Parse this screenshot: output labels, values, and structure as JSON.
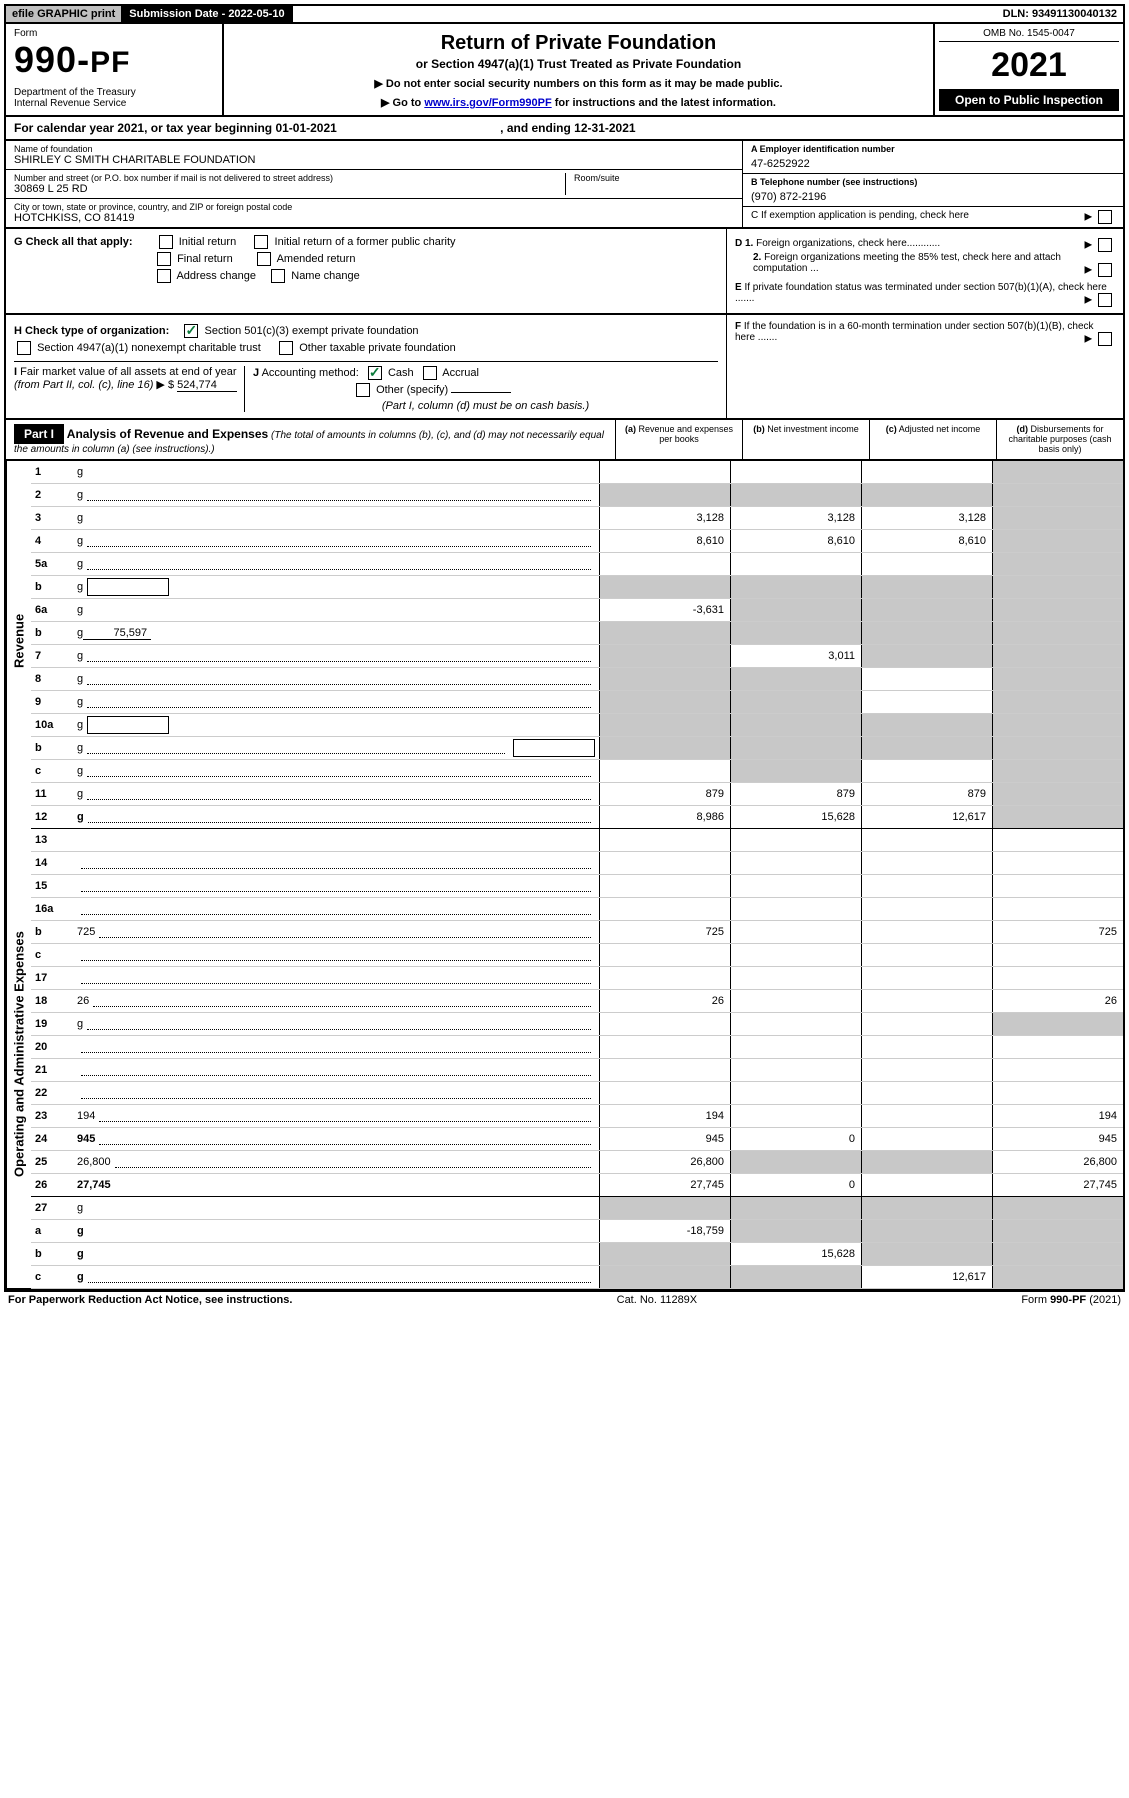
{
  "top": {
    "efile": "efile GRAPHIC print",
    "submission_label": "Submission Date - 2022-05-10",
    "dln": "DLN: 93491130040132"
  },
  "header": {
    "form_label": "Form",
    "form_number": "990-PF",
    "dept": "Department of the Treasury\nInternal Revenue Service",
    "title": "Return of Private Foundation",
    "subtitle": "or Section 4947(a)(1) Trust Treated as Private Foundation",
    "note1": "▶ Do not enter social security numbers on this form as it may be made public.",
    "note2": "▶ Go to ",
    "link": "www.irs.gov/Form990PF",
    "note2b": " for instructions and the latest information.",
    "omb": "OMB No. 1545-0047",
    "year": "2021",
    "inspection": "Open to Public Inspection"
  },
  "calyear": {
    "text": "For calendar year 2021, or tax year beginning 01-01-2021",
    "ending": ", and ending 12-31-2021"
  },
  "info": {
    "name_label": "Name of foundation",
    "name": "SHIRLEY C SMITH CHARITABLE FOUNDATION",
    "addr_label": "Number and street (or P.O. box number if mail is not delivered to street address)",
    "addr": "30869 L 25 RD",
    "room_label": "Room/suite",
    "city_label": "City or town, state or province, country, and ZIP or foreign postal code",
    "city": "HOTCHKISS, CO  81419",
    "a_label": "A Employer identification number",
    "a_val": "47-6252922",
    "b_label": "B Telephone number (see instructions)",
    "b_val": "(970) 872-2196",
    "c_label": "C If exemption application is pending, check here"
  },
  "checks": {
    "g_label": "G Check all that apply:",
    "g_items": [
      "Initial return",
      "Initial return of a former public charity",
      "Final return",
      "Amended return",
      "Address change",
      "Name change"
    ],
    "d1": "D 1. Foreign organizations, check here............",
    "d2": "2. Foreign organizations meeting the 85% test, check here and attach computation ...",
    "e": "E If private foundation status was terminated under section 507(b)(1)(A), check here .......",
    "h_label": "H Check type of organization:",
    "h1": "Section 501(c)(3) exempt private foundation",
    "h2": "Section 4947(a)(1) nonexempt charitable trust",
    "h3": "Other taxable private foundation",
    "i_label": "I Fair market value of all assets at end of year (from Part II, col. (c), line 16) ▶ $",
    "i_val": "524,774",
    "j_label": "J Accounting method:",
    "j_cash": "Cash",
    "j_accrual": "Accrual",
    "j_other": "Other (specify)",
    "j_note": "(Part I, column (d) must be on cash basis.)",
    "f": "F If the foundation is in a 60-month termination under section 507(b)(1)(B), check here ......."
  },
  "part1": {
    "label": "Part I",
    "title": "Analysis of Revenue and Expenses",
    "title_note": "(The total of amounts in columns (b), (c), and (d) may not necessarily equal the amounts in column (a) (see instructions).)",
    "col_a": "(a) Revenue and expenses per books",
    "col_b": "(b) Net investment income",
    "col_c": "(c) Adjusted net income",
    "col_d": "(d) Disbursements for charitable purposes (cash basis only)"
  },
  "side_labels": {
    "revenue": "Revenue",
    "expenses": "Operating and Administrative Expenses"
  },
  "rows": [
    {
      "n": "1",
      "d": "g",
      "a": "",
      "b": "",
      "c": ""
    },
    {
      "n": "2",
      "d": "g",
      "dots": true,
      "a": "g",
      "b": "g",
      "c": "g",
      "bold_not": true
    },
    {
      "n": "3",
      "d": "g",
      "a": "3,128",
      "b": "3,128",
      "c": "3,128"
    },
    {
      "n": "4",
      "d": "g",
      "dots": true,
      "a": "8,610",
      "b": "8,610",
      "c": "8,610"
    },
    {
      "n": "5a",
      "d": "g",
      "dots": true,
      "a": "",
      "b": "",
      "c": ""
    },
    {
      "n": "b",
      "d": "g",
      "box": true,
      "a": "g",
      "b": "g",
      "c": "g"
    },
    {
      "n": "6a",
      "d": "g",
      "a": "-3,631",
      "b": "g",
      "c": "g"
    },
    {
      "n": "b",
      "d": "g",
      "uval": "75,597",
      "a": "g",
      "b": "g",
      "c": "g"
    },
    {
      "n": "7",
      "d": "g",
      "dots": true,
      "a": "g",
      "b": "3,011",
      "c": "g"
    },
    {
      "n": "8",
      "d": "g",
      "dots": true,
      "a": "g",
      "b": "g",
      "c": ""
    },
    {
      "n": "9",
      "d": "g",
      "dots": true,
      "a": "g",
      "b": "g",
      "c": ""
    },
    {
      "n": "10a",
      "d": "g",
      "box": true,
      "a": "g",
      "b": "g",
      "c": "g"
    },
    {
      "n": "b",
      "d": "g",
      "dots": true,
      "box": true,
      "a": "g",
      "b": "g",
      "c": "g"
    },
    {
      "n": "c",
      "d": "g",
      "dots": true,
      "a": "",
      "b": "g",
      "c": ""
    },
    {
      "n": "11",
      "d": "g",
      "dots": true,
      "a": "879",
      "b": "879",
      "c": "879"
    },
    {
      "n": "12",
      "d": "g",
      "dots": true,
      "bold": true,
      "hr": true,
      "a": "8,986",
      "b": "15,628",
      "c": "12,617"
    },
    {
      "n": "13",
      "d": "",
      "a": "",
      "b": "",
      "c": ""
    },
    {
      "n": "14",
      "d": "",
      "dots": true,
      "a": "",
      "b": "",
      "c": ""
    },
    {
      "n": "15",
      "d": "",
      "dots": true,
      "a": "",
      "b": "",
      "c": ""
    },
    {
      "n": "16a",
      "d": "",
      "dots": true,
      "a": "",
      "b": "",
      "c": ""
    },
    {
      "n": "b",
      "d": "725",
      "dots": true,
      "a": "725",
      "b": "",
      "c": ""
    },
    {
      "n": "c",
      "d": "",
      "dots": true,
      "a": "",
      "b": "",
      "c": ""
    },
    {
      "n": "17",
      "d": "",
      "dots": true,
      "a": "",
      "b": "",
      "c": ""
    },
    {
      "n": "18",
      "d": "26",
      "dots": true,
      "a": "26",
      "b": "",
      "c": ""
    },
    {
      "n": "19",
      "d": "g",
      "dots": true,
      "a": "",
      "b": "",
      "c": ""
    },
    {
      "n": "20",
      "d": "",
      "dots": true,
      "a": "",
      "b": "",
      "c": ""
    },
    {
      "n": "21",
      "d": "",
      "dots": true,
      "a": "",
      "b": "",
      "c": ""
    },
    {
      "n": "22",
      "d": "",
      "dots": true,
      "a": "",
      "b": "",
      "c": ""
    },
    {
      "n": "23",
      "d": "194",
      "dots": true,
      "a": "194",
      "b": "",
      "c": ""
    },
    {
      "n": "24",
      "d": "945",
      "dots": true,
      "bold": true,
      "a": "945",
      "b": "0",
      "c": ""
    },
    {
      "n": "25",
      "d": "26,800",
      "dots": true,
      "a": "26,800",
      "b": "g",
      "c": "g"
    },
    {
      "n": "26",
      "d": "27,745",
      "bold": true,
      "hr": true,
      "a": "27,745",
      "b": "0",
      "c": ""
    },
    {
      "n": "27",
      "d": "g",
      "a": "g",
      "b": "g",
      "c": "g"
    },
    {
      "n": "a",
      "d": "g",
      "bold": true,
      "a": "-18,759",
      "b": "g",
      "c": "g"
    },
    {
      "n": "b",
      "d": "g",
      "bold": true,
      "a": "g",
      "b": "15,628",
      "c": "g"
    },
    {
      "n": "c",
      "d": "g",
      "dots": true,
      "bold": true,
      "a": "g",
      "b": "g",
      "c": "12,617"
    }
  ],
  "footer": {
    "left": "For Paperwork Reduction Act Notice, see instructions.",
    "center": "Cat. No. 11289X",
    "right": "Form 990-PF (2021)"
  }
}
